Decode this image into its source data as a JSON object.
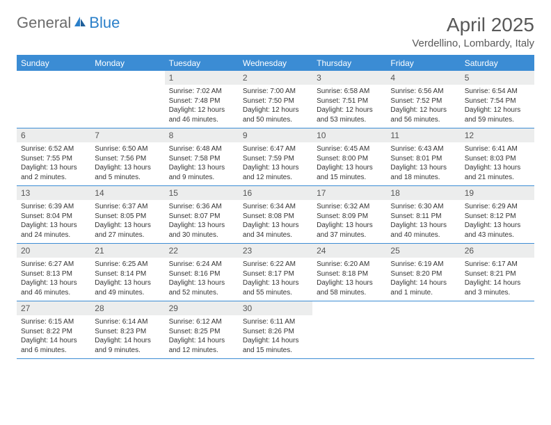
{
  "brand": {
    "part1": "General",
    "part2": "Blue"
  },
  "title": {
    "month": "April 2025",
    "location": "Verdellino, Lombardy, Italy"
  },
  "colors": {
    "header_bg": "#3b8cd4",
    "header_text": "#ffffff",
    "daynum_bg": "#eceded",
    "logo_gray": "#6b6b6b",
    "logo_blue": "#2a7fc9",
    "title_color": "#595959",
    "body_bg": "#ffffff"
  },
  "weekdays": [
    "Sunday",
    "Monday",
    "Tuesday",
    "Wednesday",
    "Thursday",
    "Friday",
    "Saturday"
  ],
  "weeks": [
    [
      {
        "num": "",
        "sunrise": "",
        "sunset": "",
        "daylight": ""
      },
      {
        "num": "",
        "sunrise": "",
        "sunset": "",
        "daylight": ""
      },
      {
        "num": "1",
        "sunrise": "Sunrise: 7:02 AM",
        "sunset": "Sunset: 7:48 PM",
        "daylight": "Daylight: 12 hours and 46 minutes."
      },
      {
        "num": "2",
        "sunrise": "Sunrise: 7:00 AM",
        "sunset": "Sunset: 7:50 PM",
        "daylight": "Daylight: 12 hours and 50 minutes."
      },
      {
        "num": "3",
        "sunrise": "Sunrise: 6:58 AM",
        "sunset": "Sunset: 7:51 PM",
        "daylight": "Daylight: 12 hours and 53 minutes."
      },
      {
        "num": "4",
        "sunrise": "Sunrise: 6:56 AM",
        "sunset": "Sunset: 7:52 PM",
        "daylight": "Daylight: 12 hours and 56 minutes."
      },
      {
        "num": "5",
        "sunrise": "Sunrise: 6:54 AM",
        "sunset": "Sunset: 7:54 PM",
        "daylight": "Daylight: 12 hours and 59 minutes."
      }
    ],
    [
      {
        "num": "6",
        "sunrise": "Sunrise: 6:52 AM",
        "sunset": "Sunset: 7:55 PM",
        "daylight": "Daylight: 13 hours and 2 minutes."
      },
      {
        "num": "7",
        "sunrise": "Sunrise: 6:50 AM",
        "sunset": "Sunset: 7:56 PM",
        "daylight": "Daylight: 13 hours and 5 minutes."
      },
      {
        "num": "8",
        "sunrise": "Sunrise: 6:48 AM",
        "sunset": "Sunset: 7:58 PM",
        "daylight": "Daylight: 13 hours and 9 minutes."
      },
      {
        "num": "9",
        "sunrise": "Sunrise: 6:47 AM",
        "sunset": "Sunset: 7:59 PM",
        "daylight": "Daylight: 13 hours and 12 minutes."
      },
      {
        "num": "10",
        "sunrise": "Sunrise: 6:45 AM",
        "sunset": "Sunset: 8:00 PM",
        "daylight": "Daylight: 13 hours and 15 minutes."
      },
      {
        "num": "11",
        "sunrise": "Sunrise: 6:43 AM",
        "sunset": "Sunset: 8:01 PM",
        "daylight": "Daylight: 13 hours and 18 minutes."
      },
      {
        "num": "12",
        "sunrise": "Sunrise: 6:41 AM",
        "sunset": "Sunset: 8:03 PM",
        "daylight": "Daylight: 13 hours and 21 minutes."
      }
    ],
    [
      {
        "num": "13",
        "sunrise": "Sunrise: 6:39 AM",
        "sunset": "Sunset: 8:04 PM",
        "daylight": "Daylight: 13 hours and 24 minutes."
      },
      {
        "num": "14",
        "sunrise": "Sunrise: 6:37 AM",
        "sunset": "Sunset: 8:05 PM",
        "daylight": "Daylight: 13 hours and 27 minutes."
      },
      {
        "num": "15",
        "sunrise": "Sunrise: 6:36 AM",
        "sunset": "Sunset: 8:07 PM",
        "daylight": "Daylight: 13 hours and 30 minutes."
      },
      {
        "num": "16",
        "sunrise": "Sunrise: 6:34 AM",
        "sunset": "Sunset: 8:08 PM",
        "daylight": "Daylight: 13 hours and 34 minutes."
      },
      {
        "num": "17",
        "sunrise": "Sunrise: 6:32 AM",
        "sunset": "Sunset: 8:09 PM",
        "daylight": "Daylight: 13 hours and 37 minutes."
      },
      {
        "num": "18",
        "sunrise": "Sunrise: 6:30 AM",
        "sunset": "Sunset: 8:11 PM",
        "daylight": "Daylight: 13 hours and 40 minutes."
      },
      {
        "num": "19",
        "sunrise": "Sunrise: 6:29 AM",
        "sunset": "Sunset: 8:12 PM",
        "daylight": "Daylight: 13 hours and 43 minutes."
      }
    ],
    [
      {
        "num": "20",
        "sunrise": "Sunrise: 6:27 AM",
        "sunset": "Sunset: 8:13 PM",
        "daylight": "Daylight: 13 hours and 46 minutes."
      },
      {
        "num": "21",
        "sunrise": "Sunrise: 6:25 AM",
        "sunset": "Sunset: 8:14 PM",
        "daylight": "Daylight: 13 hours and 49 minutes."
      },
      {
        "num": "22",
        "sunrise": "Sunrise: 6:24 AM",
        "sunset": "Sunset: 8:16 PM",
        "daylight": "Daylight: 13 hours and 52 minutes."
      },
      {
        "num": "23",
        "sunrise": "Sunrise: 6:22 AM",
        "sunset": "Sunset: 8:17 PM",
        "daylight": "Daylight: 13 hours and 55 minutes."
      },
      {
        "num": "24",
        "sunrise": "Sunrise: 6:20 AM",
        "sunset": "Sunset: 8:18 PM",
        "daylight": "Daylight: 13 hours and 58 minutes."
      },
      {
        "num": "25",
        "sunrise": "Sunrise: 6:19 AM",
        "sunset": "Sunset: 8:20 PM",
        "daylight": "Daylight: 14 hours and 1 minute."
      },
      {
        "num": "26",
        "sunrise": "Sunrise: 6:17 AM",
        "sunset": "Sunset: 8:21 PM",
        "daylight": "Daylight: 14 hours and 3 minutes."
      }
    ],
    [
      {
        "num": "27",
        "sunrise": "Sunrise: 6:15 AM",
        "sunset": "Sunset: 8:22 PM",
        "daylight": "Daylight: 14 hours and 6 minutes."
      },
      {
        "num": "28",
        "sunrise": "Sunrise: 6:14 AM",
        "sunset": "Sunset: 8:23 PM",
        "daylight": "Daylight: 14 hours and 9 minutes."
      },
      {
        "num": "29",
        "sunrise": "Sunrise: 6:12 AM",
        "sunset": "Sunset: 8:25 PM",
        "daylight": "Daylight: 14 hours and 12 minutes."
      },
      {
        "num": "30",
        "sunrise": "Sunrise: 6:11 AM",
        "sunset": "Sunset: 8:26 PM",
        "daylight": "Daylight: 14 hours and 15 minutes."
      },
      {
        "num": "",
        "sunrise": "",
        "sunset": "",
        "daylight": ""
      },
      {
        "num": "",
        "sunrise": "",
        "sunset": "",
        "daylight": ""
      },
      {
        "num": "",
        "sunrise": "",
        "sunset": "",
        "daylight": ""
      }
    ]
  ]
}
